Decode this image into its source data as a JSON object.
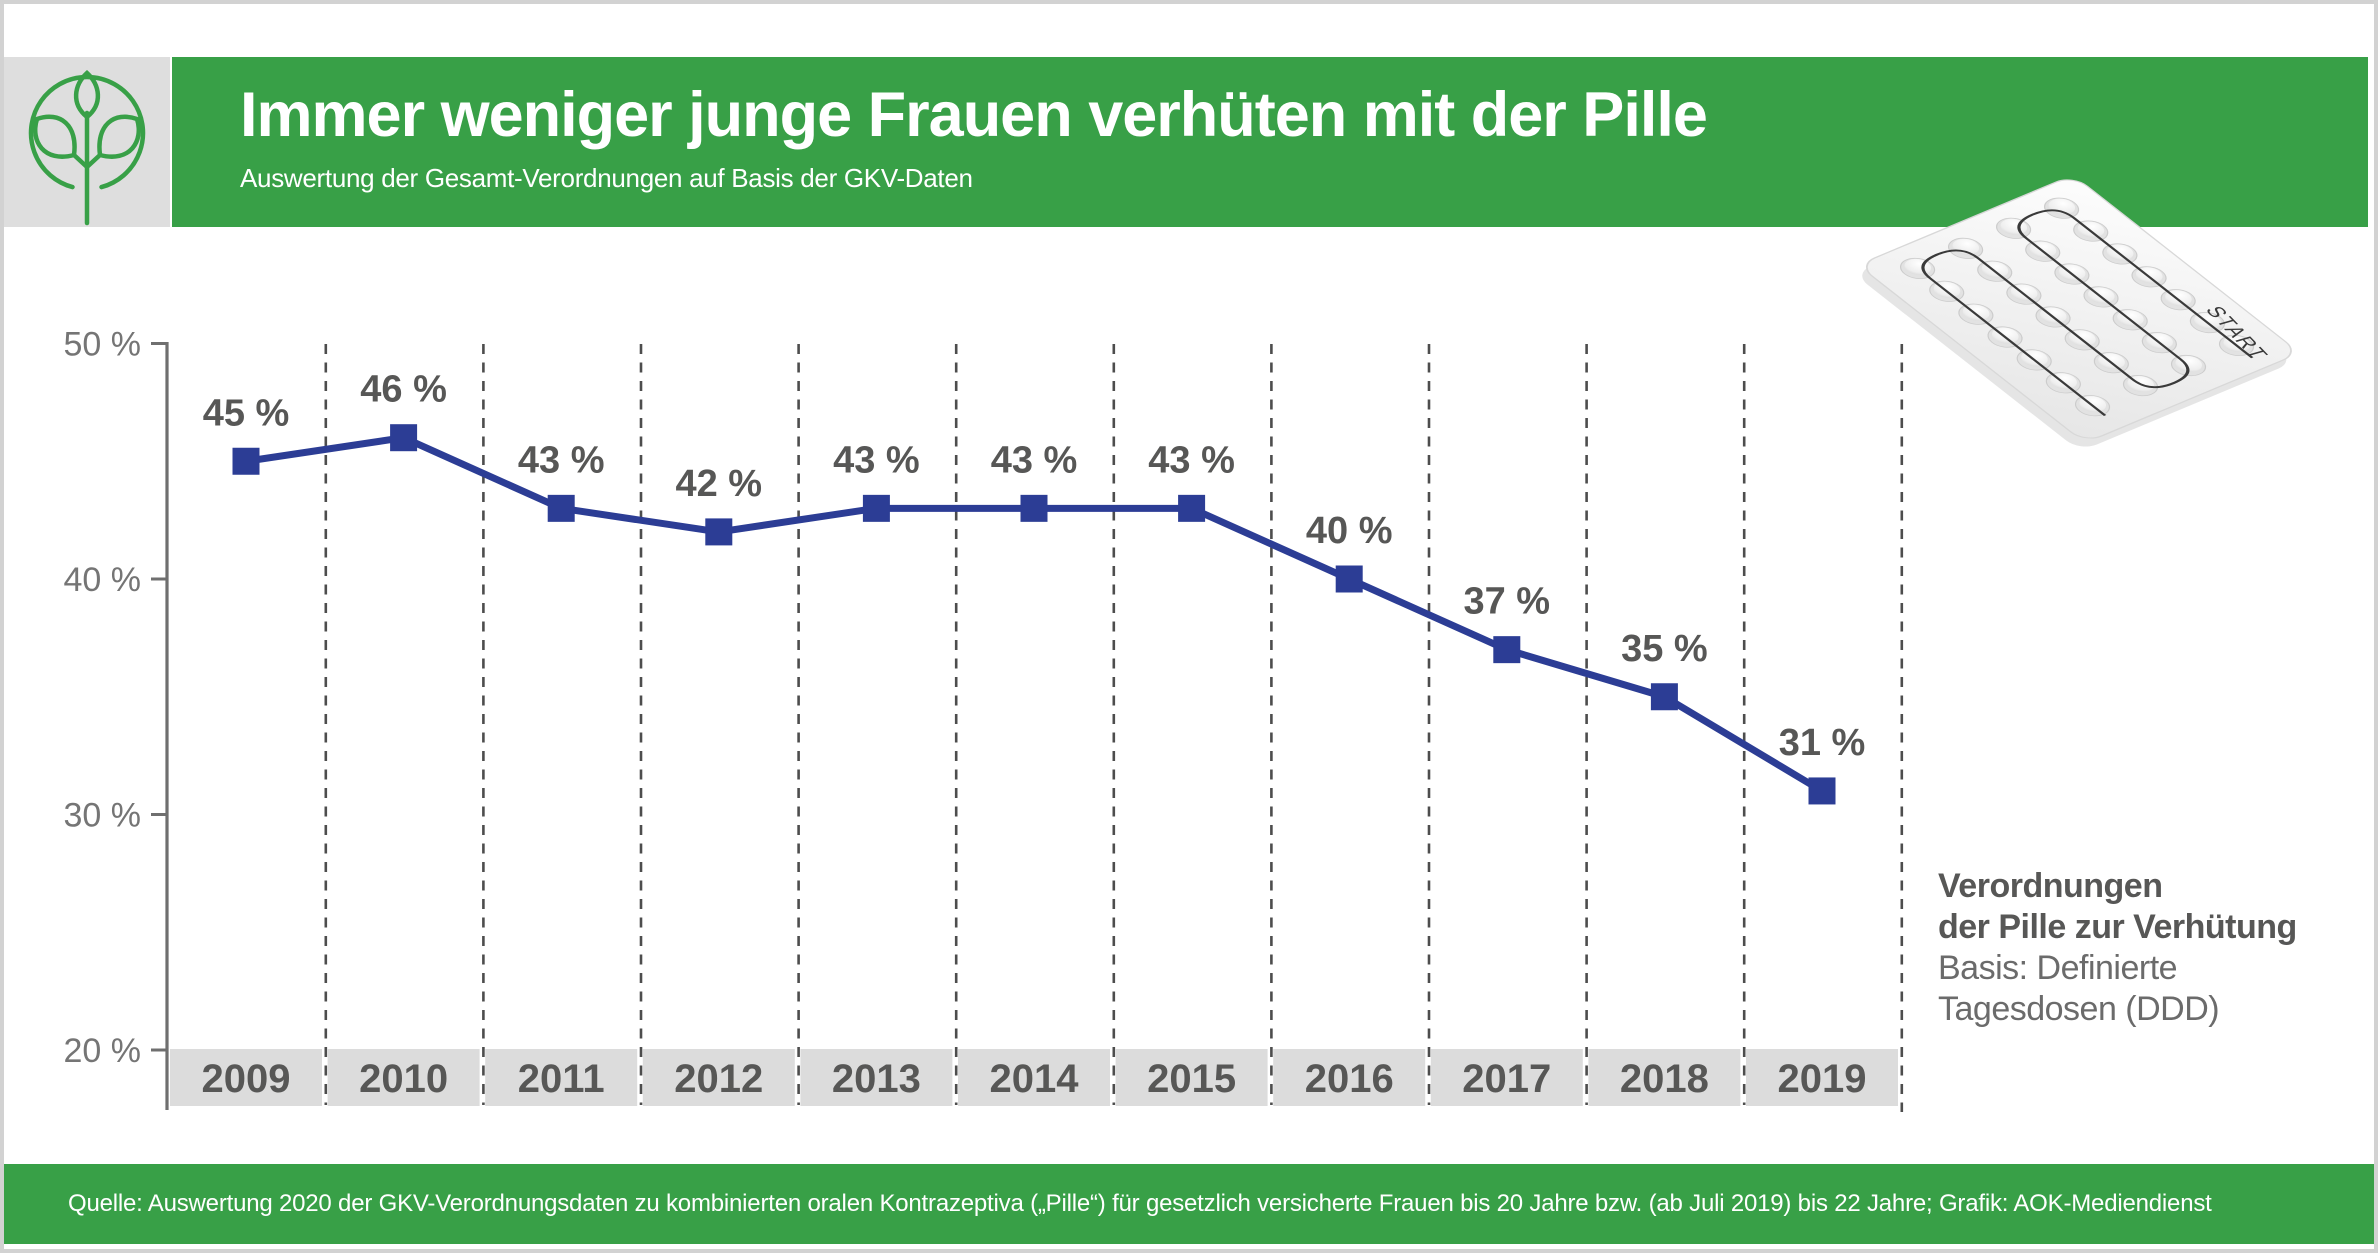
{
  "colors": {
    "green": "#38A047",
    "blue": "#2C3D95",
    "box_gray": "#dcdcdc",
    "logo_box_gray": "#dedede",
    "dark_text": "#575756",
    "mid_text": "#6e6e6e",
    "tick_text": "#757575",
    "dash": "#4d4d4d",
    "axis": "#6f6f6f",
    "border_gray": "#d2d2d2"
  },
  "header": {
    "title": "Immer weniger junge Frauen verhüten mit der Pille",
    "subtitle": "Auswertung der Gesamt-Verordnungen auf Basis der GKV-Daten"
  },
  "logo": {
    "icon": "plant-in-circle-icon"
  },
  "blister": {
    "start_label": "START"
  },
  "chart_data": {
    "type": "line",
    "title": "Immer weniger junge Frauen verhüten mit der Pille",
    "subtitle": "Auswertung der Gesamt-Verordnungen auf Basis der GKV-Daten",
    "categories": [
      "2009",
      "2010",
      "2011",
      "2012",
      "2013",
      "2014",
      "2015",
      "2016",
      "2017",
      "2018",
      "2019"
    ],
    "values": [
      45,
      46,
      43,
      42,
      43,
      43,
      43,
      40,
      37,
      35,
      31
    ],
    "unit": "%",
    "label_format": "{value} %",
    "ylim": [
      20,
      50
    ],
    "yticks": [
      {
        "value": 50,
        "label": "50 %"
      },
      {
        "value": 40,
        "label": "40 %"
      },
      {
        "value": 30,
        "label": "30 %"
      },
      {
        "value": 20,
        "label": "20 %"
      }
    ],
    "grid": "dashed-vertical-between-categories",
    "legend_position": "right-below-chart",
    "series": [
      {
        "name": "Verordnungen der Pille zur Verhütung",
        "values": [
          45,
          46,
          43,
          42,
          43,
          43,
          43,
          40,
          37,
          35,
          31
        ]
      }
    ]
  },
  "legend": {
    "name_line1": "Verordnungen",
    "name_line2": "der Pille zur Verhütung",
    "basis_line1": "Basis: Definierte",
    "basis_line2": "Tagesdosen (DDD)"
  },
  "footer": {
    "source": "Quelle: Auswertung 2020 der GKV-Verordnungsdaten zu kombinierten oralen Kontrazeptiva („Pille“) für gesetzlich versicherte Frauen bis 20 Jahre bzw. (ab Juli 2019) bis 22 Jahre; Grafik: AOK-Mediendienst"
  }
}
